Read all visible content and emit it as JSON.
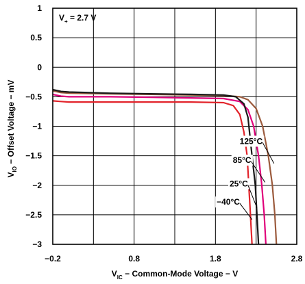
{
  "chart_data": {
    "type": "line",
    "xlabel_main": "V",
    "xlabel_sub": "IC",
    "xlabel_rest": " − Common-Mode Voltage − V",
    "ylabel_main": "V",
    "ylabel_sub": "IO",
    "ylabel_rest": " − Offset Voltage − mV",
    "annotation": {
      "main": "V",
      "sub": "+",
      "rest": " = 2.7 V"
    },
    "xlim": [
      -0.2,
      2.8
    ],
    "ylim": [
      -3,
      1
    ],
    "x_ticks": [
      {
        "value": -0.2,
        "label": "−0.2"
      },
      {
        "value": 0.8,
        "label": "0.8"
      },
      {
        "value": 1.8,
        "label": "1.8"
      },
      {
        "value": 2.8,
        "label": "2.8"
      }
    ],
    "x_grid": [
      -0.2,
      0.3,
      0.8,
      1.3,
      1.8,
      2.3,
      2.8
    ],
    "y_ticks": [
      {
        "value": 1,
        "label": "1"
      },
      {
        "value": 0.5,
        "label": "0.5"
      },
      {
        "value": 0,
        "label": "0"
      },
      {
        "value": -0.5,
        "label": "−0.5"
      },
      {
        "value": -1,
        "label": "−1"
      },
      {
        "value": -1.5,
        "label": "−1.5"
      },
      {
        "value": -2,
        "label": "−2"
      },
      {
        "value": -2.5,
        "label": "−2.5"
      },
      {
        "value": -3,
        "label": "−3"
      }
    ],
    "grid": true,
    "series": [
      {
        "name": "125°C",
        "color": "#9b5a3c",
        "points": [
          [
            -0.2,
            -0.4
          ],
          [
            -0.1,
            -0.43
          ],
          [
            0,
            -0.44
          ],
          [
            0.5,
            -0.45
          ],
          [
            1,
            -0.46
          ],
          [
            1.5,
            -0.47
          ],
          [
            1.9,
            -0.48
          ],
          [
            2.1,
            -0.5
          ],
          [
            2.2,
            -0.55
          ],
          [
            2.3,
            -0.7
          ],
          [
            2.38,
            -1.0
          ],
          [
            2.45,
            -1.5
          ],
          [
            2.5,
            -2.0
          ],
          [
            2.53,
            -2.5
          ],
          [
            2.55,
            -3.0
          ]
        ],
        "label": {
          "text": "125°C",
          "at": [
            2.38,
            -1.3
          ],
          "to": [
            2.52,
            -1.63
          ]
        }
      },
      {
        "name": "85°C",
        "color": "#e0007a",
        "points": [
          [
            -0.2,
            -0.46
          ],
          [
            -0.1,
            -0.49
          ],
          [
            0,
            -0.5
          ],
          [
            0.5,
            -0.5
          ],
          [
            1,
            -0.51
          ],
          [
            1.5,
            -0.52
          ],
          [
            1.9,
            -0.53
          ],
          [
            2.1,
            -0.58
          ],
          [
            2.2,
            -0.72
          ],
          [
            2.27,
            -1.0
          ],
          [
            2.33,
            -1.5
          ],
          [
            2.37,
            -2.0
          ],
          [
            2.4,
            -2.5
          ],
          [
            2.42,
            -3.0
          ]
        ],
        "label": {
          "text": "85°C",
          "at": [
            2.24,
            -1.62
          ],
          "to": [
            2.41,
            -1.95
          ]
        }
      },
      {
        "name": "25°C",
        "color": "#1a1a1a",
        "points": [
          [
            -0.2,
            -0.38
          ],
          [
            -0.1,
            -0.41
          ],
          [
            0,
            -0.42
          ],
          [
            0.5,
            -0.44
          ],
          [
            1,
            -0.45
          ],
          [
            1.5,
            -0.46
          ],
          [
            1.9,
            -0.47
          ],
          [
            2.05,
            -0.5
          ],
          [
            2.15,
            -0.62
          ],
          [
            2.2,
            -0.85
          ],
          [
            2.25,
            -1.5
          ],
          [
            2.29,
            -2.0
          ],
          [
            2.31,
            -2.5
          ],
          [
            2.33,
            -3.0
          ]
        ],
        "label": {
          "text": "25°C",
          "at": [
            2.2,
            -2.02
          ],
          "to": [
            2.31,
            -2.38
          ]
        }
      },
      {
        "name": "−40°C",
        "color": "#e2232a",
        "points": [
          [
            -0.2,
            -0.57
          ],
          [
            -0.1,
            -0.58
          ],
          [
            0,
            -0.59
          ],
          [
            0.5,
            -0.59
          ],
          [
            1,
            -0.59
          ],
          [
            1.5,
            -0.59
          ],
          [
            1.9,
            -0.6
          ],
          [
            2.02,
            -0.65
          ],
          [
            2.1,
            -0.8
          ],
          [
            2.15,
            -1.1
          ],
          [
            2.19,
            -1.5
          ],
          [
            2.21,
            -2.0
          ],
          [
            2.23,
            -2.5
          ],
          [
            2.25,
            -3.0
          ]
        ],
        "label": {
          "text": "−40°C",
          "at": [
            2.1,
            -2.33
          ],
          "to": [
            2.25,
            -2.58
          ]
        }
      }
    ]
  }
}
